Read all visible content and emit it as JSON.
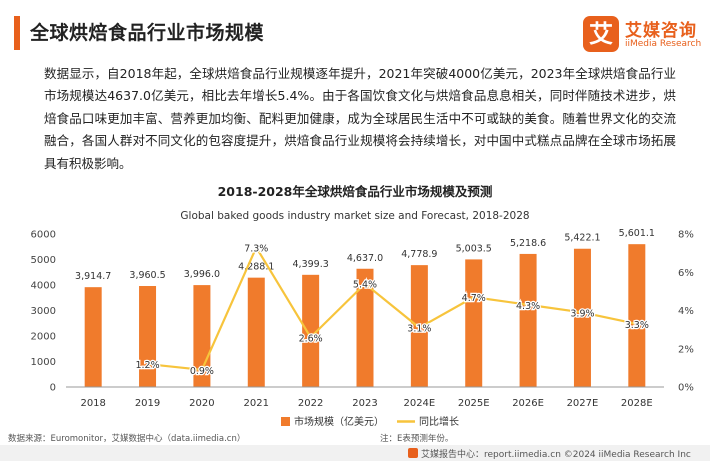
{
  "header": {
    "title": "全球烘焙食品行业市场规模",
    "logo_cn": "艾媒咨询",
    "logo_en": "iiMedia Research",
    "logo_mark": "艾"
  },
  "body_text": "数据显示，自2018年起，全球烘焙食品行业规模逐年提升，2021年突破4000亿美元，2023年全球烘焙食品行业市场规模达4637.0亿美元，相比去年增长5.4%。由于各国饮食文化与烘焙食品息息相关，同时伴随技术进步，烘焙食品口味更加丰富、营养更加均衡、配料更加健康，成为全球居民生活中不可或缺的美食。随着世界文化的交流融合，各国人群对不同文化的包容度提升，烘焙食品行业规模将会持续增长，对中国中式糕点品牌在全球市场拓展具有积极影响。",
  "chart_data": {
    "type": "bar",
    "title": "2018-2028年全球烘焙食品行业市场规模及预测",
    "subtitle": "Global baked goods industry market size and Forecast, 2018-2028",
    "categories": [
      "2018",
      "2019",
      "2020",
      "2021",
      "2022",
      "2023",
      "2024E",
      "2025E",
      "2026E",
      "2027E",
      "2028E"
    ],
    "series": [
      {
        "name": "市场规模（亿美元）",
        "type": "bar",
        "axis": "left",
        "color": "#f07b2c",
        "values": [
          3914.7,
          3960.5,
          3996.0,
          4288.1,
          4399.3,
          4637.0,
          4778.9,
          5003.5,
          5218.6,
          5422.1,
          5601.1
        ],
        "labels": [
          "3,914.7",
          "3,960.5",
          "3,996.0",
          "4,288.1",
          "4,399.3",
          "4,637.0",
          "4,778.9",
          "5,003.5",
          "5,218.6",
          "5,422.1",
          "5,601.1"
        ]
      },
      {
        "name": "同比增长",
        "type": "line",
        "axis": "right",
        "color": "#f7c43c",
        "values": [
          null,
          1.2,
          0.9,
          7.3,
          2.6,
          5.4,
          3.1,
          4.7,
          4.3,
          3.9,
          3.3
        ],
        "labels": [
          "",
          "1.2%",
          "0.9%",
          "7.3%",
          "2.6%",
          "5.4%",
          "3.1%",
          "4.7%",
          "4.3%",
          "3.9%",
          "3.3%"
        ]
      }
    ],
    "y_left": {
      "min": 0,
      "max": 6000,
      "ticks": [
        "0",
        "1000",
        "2000",
        "3000",
        "4000",
        "5000",
        "6000"
      ]
    },
    "y_right": {
      "min": 0,
      "max": 8,
      "ticks": [
        "0%",
        "2%",
        "4%",
        "6%",
        "8%"
      ]
    },
    "grid": false,
    "legend_position": "bottom-center"
  },
  "footer": {
    "source": "数据来源：Euromonitor，艾媒数据中心（data.iimedia.cn）",
    "note": "注：E表预测年份。",
    "brand": "艾媒报告中心：report.iimedia.cn ©2024  iiMedia Research  Inc"
  }
}
